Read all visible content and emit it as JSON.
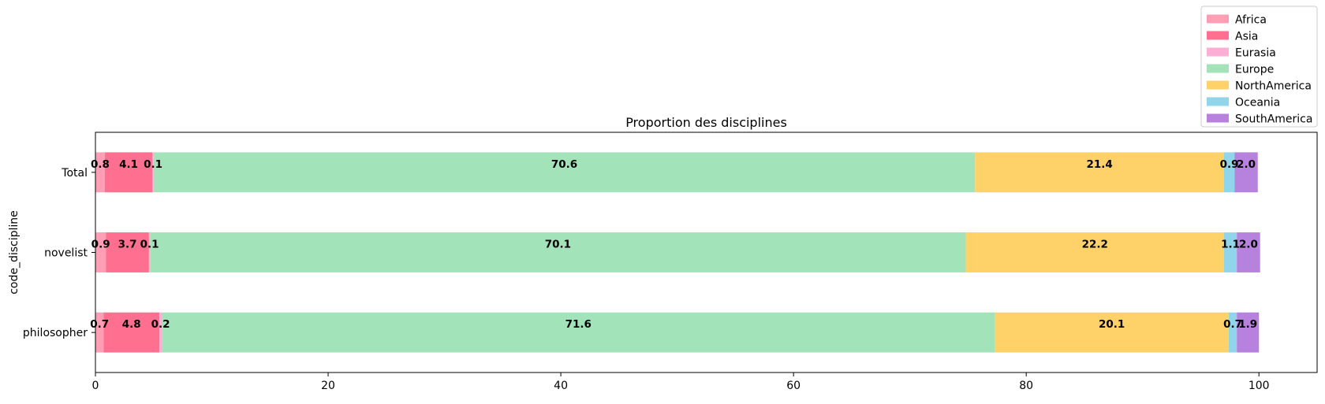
{
  "chart_data": {
    "type": "bar",
    "orientation": "horizontal",
    "stacked": true,
    "title": "Proportion des disciplines",
    "xlabel": "",
    "ylabel": "code_discipline",
    "categories": [
      "Total",
      "novelist",
      "philosopher"
    ],
    "xlim": [
      0,
      105
    ],
    "xticks": [
      0,
      20,
      40,
      60,
      80,
      100
    ],
    "grid": false,
    "legend_position": "top-right",
    "series": [
      {
        "name": "Africa",
        "color": "#ff9eb5",
        "values": [
          0.8,
          0.9,
          0.7
        ]
      },
      {
        "name": "Asia",
        "color": "#ff6f8f",
        "values": [
          4.1,
          3.7,
          4.8
        ]
      },
      {
        "name": "Eurasia",
        "color": "#ffaed4",
        "values": [
          0.1,
          0.1,
          0.2
        ]
      },
      {
        "name": "Europe",
        "color": "#a3e3b9",
        "values": [
          70.6,
          70.1,
          71.6
        ]
      },
      {
        "name": "NorthAmerica",
        "color": "#ffd169",
        "values": [
          21.4,
          22.2,
          20.1
        ]
      },
      {
        "name": "Oceania",
        "color": "#91d5eb",
        "values": [
          0.9,
          1.1,
          0.7
        ]
      },
      {
        "name": "SouthAmerica",
        "color": "#b682de",
        "values": [
          2.0,
          2.0,
          1.9
        ]
      }
    ]
  }
}
